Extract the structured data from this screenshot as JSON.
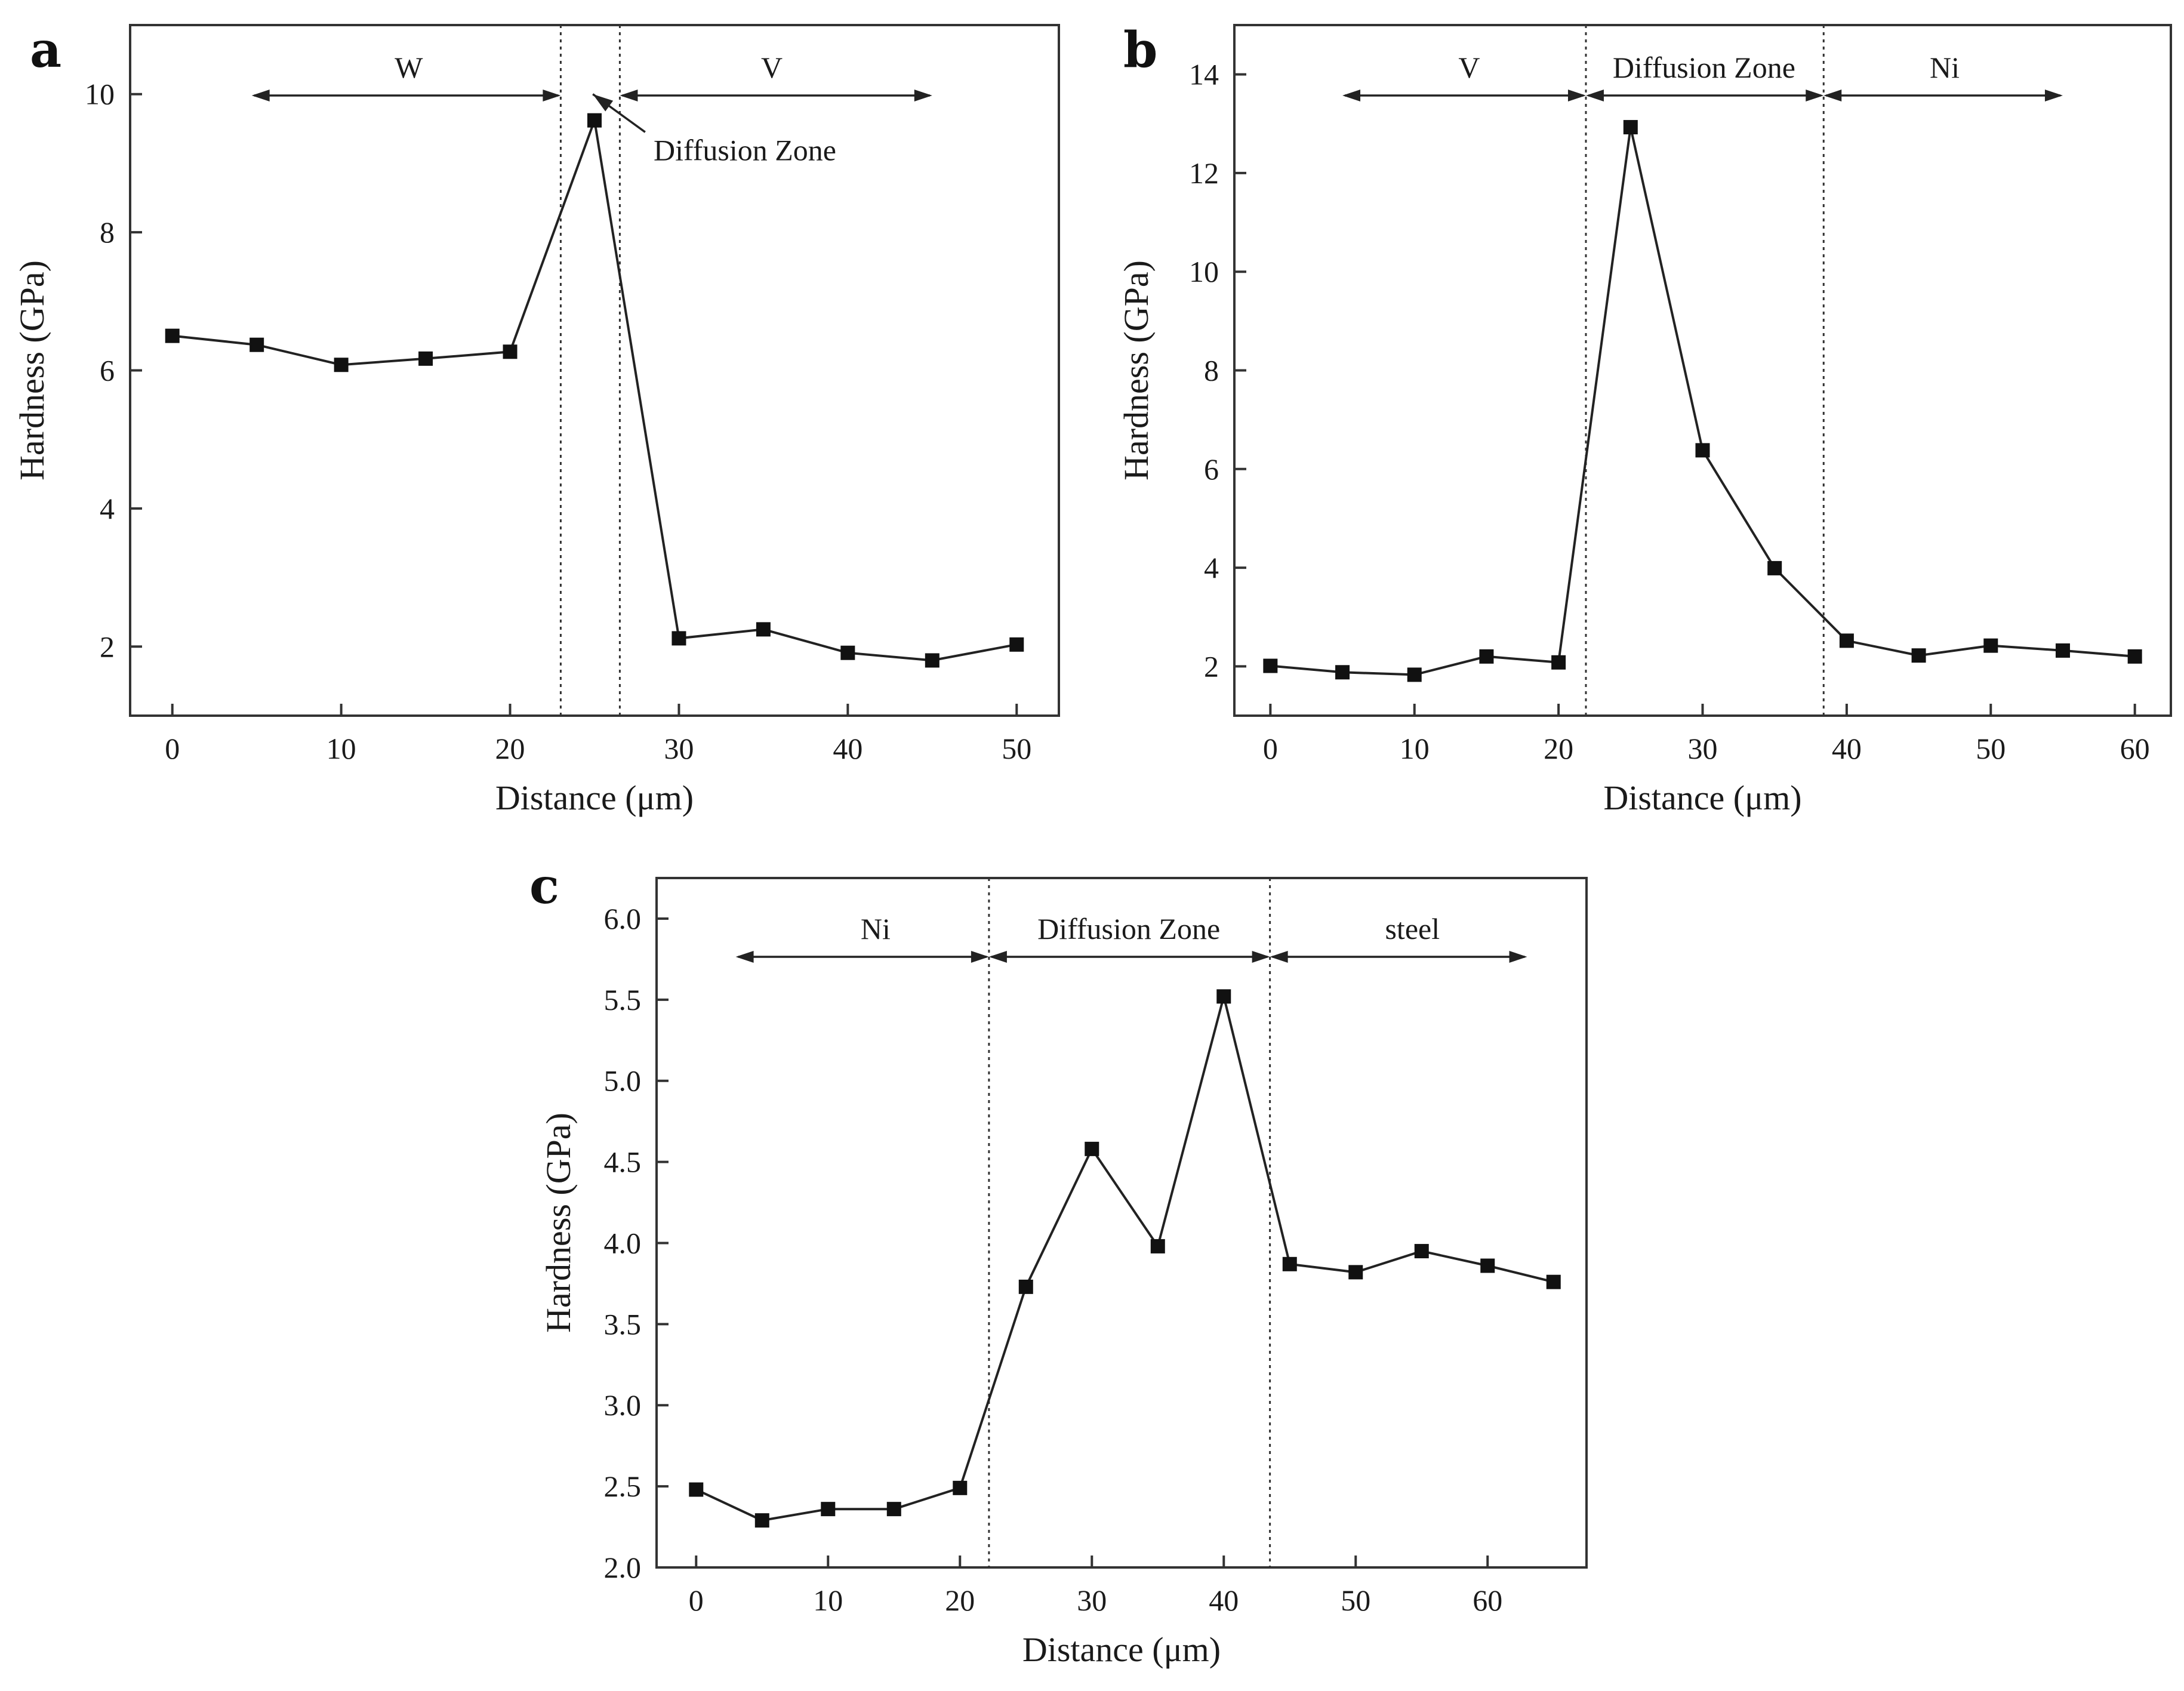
{
  "chart_data": [
    {
      "type": "line",
      "panel": "a",
      "xlabel": "Distance (μm)",
      "ylabel": "Hardness (GPa)",
      "xlim": [
        -2.5,
        52.5
      ],
      "ylim": [
        1.0,
        11.0
      ],
      "xticks": [
        0,
        10,
        20,
        30,
        40,
        50
      ],
      "xtick_labels": [
        "0",
        "10",
        "20",
        "30",
        "40",
        "50"
      ],
      "yticks": [
        2,
        4,
        6,
        8,
        10
      ],
      "ytick_labels": [
        "2",
        "4",
        "6",
        "8",
        "10"
      ],
      "grid": false,
      "series": [
        {
          "x": [
            0,
            5,
            10,
            15,
            20,
            25,
            30,
            35,
            40,
            45,
            50
          ],
          "values": [
            6.5,
            6.37,
            6.08,
            6.17,
            6.27,
            9.62,
            2.12,
            2.25,
            1.91,
            1.8,
            2.03
          ]
        }
      ],
      "dividers": [
        23.0,
        26.5
      ],
      "regions": [
        {
          "label": "W",
          "from": 4.7,
          "to": 23.0,
          "label_x": 14.0,
          "arrow": "both"
        },
        {
          "label": "V",
          "from": 26.5,
          "to": 45.0,
          "label_x": 35.5,
          "arrow": "both"
        }
      ],
      "annotations": [
        {
          "text": "Diffusion Zone",
          "x": 28.5,
          "y": 9.2,
          "arrow_from": [
            28.0,
            9.45
          ],
          "arrow_to": [
            24.9,
            10.0
          ]
        }
      ]
    },
    {
      "type": "line",
      "panel": "b",
      "xlabel": "Distance (μm)",
      "ylabel": "Hardness (GPa)",
      "xlim": [
        -2.5,
        62.5
      ],
      "ylim": [
        1.0,
        15.0
      ],
      "xticks": [
        0,
        10,
        20,
        30,
        40,
        50,
        60
      ],
      "xtick_labels": [
        "0",
        "10",
        "20",
        "30",
        "40",
        "50",
        "60"
      ],
      "yticks": [
        2,
        4,
        6,
        8,
        10,
        12,
        14
      ],
      "ytick_labels": [
        "2",
        "4",
        "6",
        "8",
        "10",
        "12",
        "14"
      ],
      "grid": false,
      "series": [
        {
          "x": [
            0,
            5,
            10,
            15,
            20,
            25,
            30,
            35,
            40,
            45,
            50,
            55,
            60
          ],
          "values": [
            2.01,
            1.88,
            1.83,
            2.2,
            2.08,
            12.93,
            6.38,
            3.99,
            2.52,
            2.22,
            2.42,
            2.32,
            2.2
          ]
        }
      ],
      "dividers": [
        21.9,
        38.4
      ],
      "regions": [
        {
          "label": "V",
          "from": 5.0,
          "to": 21.9,
          "label_x": 13.8,
          "arrow": "both"
        },
        {
          "label": "Diffusion Zone",
          "from": 21.9,
          "to": 38.4,
          "label_x": 30.1,
          "arrow": "both"
        },
        {
          "label": "Ni",
          "from": 38.4,
          "to": 55.0,
          "label_x": 46.8,
          "arrow": "both"
        }
      ],
      "annotations": []
    },
    {
      "type": "line",
      "panel": "c",
      "xlabel": "Distance (μm)",
      "ylabel": "Hardness (GPa)",
      "xlim": [
        -3.0,
        67.5
      ],
      "ylim": [
        2.0,
        6.25
      ],
      "xticks": [
        0,
        10,
        20,
        30,
        40,
        50,
        60
      ],
      "xtick_labels": [
        "0",
        "10",
        "20",
        "30",
        "40",
        "50",
        "60"
      ],
      "yticks": [
        2.0,
        2.5,
        3.0,
        3.5,
        4.0,
        4.5,
        5.0,
        5.5,
        6.0
      ],
      "ytick_labels": [
        "2.0",
        "2.5",
        "3.0",
        "3.5",
        "4.0",
        "4.5",
        "5.0",
        "5.5",
        "6.0"
      ],
      "grid": false,
      "series": [
        {
          "x": [
            0,
            5,
            10,
            15,
            20,
            25,
            30,
            35,
            40,
            45,
            50,
            55,
            60,
            65
          ],
          "values": [
            2.48,
            2.29,
            2.36,
            2.36,
            2.49,
            3.73,
            4.58,
            3.98,
            5.52,
            3.87,
            3.82,
            3.95,
            3.86,
            3.76
          ]
        }
      ],
      "dividers": [
        22.2,
        43.5
      ],
      "regions": [
        {
          "label": "Ni",
          "from": 3.0,
          "to": 22.2,
          "label_x": 13.6,
          "arrow": "both"
        },
        {
          "label": "Diffusion Zone",
          "from": 22.2,
          "to": 43.5,
          "label_x": 32.8,
          "arrow": "both"
        },
        {
          "label": "steel",
          "from": 43.5,
          "to": 63.0,
          "label_x": 54.3,
          "arrow": "both"
        }
      ],
      "annotations": []
    }
  ]
}
